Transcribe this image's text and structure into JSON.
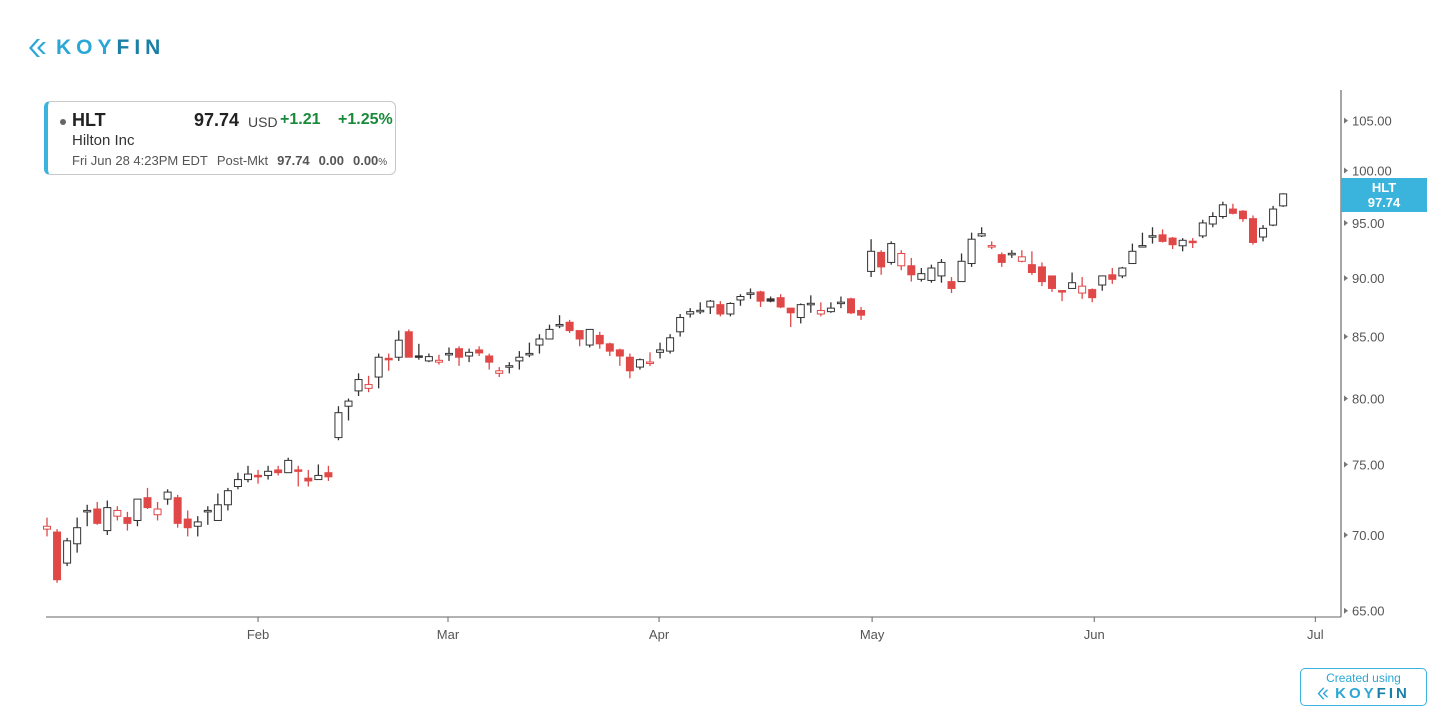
{
  "brand": {
    "part1": "KOY",
    "part2": "FIN",
    "created_label": "Created using"
  },
  "quote": {
    "ticker": "HLT",
    "price": "97.74",
    "currency": "USD",
    "change": "+1.21",
    "change_pct": "+1.25%",
    "name": "Hilton Inc",
    "timestamp": "Fri Jun 28 4:23PM EDT",
    "post_label": "Post-Mkt",
    "post_price": "97.74",
    "post_change": "0.00",
    "post_change_pct": "0.00",
    "post_pct_sign": "%"
  },
  "badge": {
    "ticker": "HLT",
    "price": "97.74"
  },
  "colors": {
    "up": "#333333",
    "down": "#e04848",
    "accent": "#3ab4dc",
    "positive": "#1a8a3a"
  },
  "chart_data": {
    "type": "candlestick",
    "title": "HLT",
    "yscale": "log",
    "ylim": [
      64.6,
      108.2
    ],
    "yticks": [
      "65.00",
      "70.00",
      "75.00",
      "80.00",
      "85.00",
      "90.00",
      "95.00",
      "100.00",
      "105.00"
    ],
    "xticks": [
      {
        "label": "Feb",
        "at": 21.0
      },
      {
        "label": "Mar",
        "at": 39.9
      },
      {
        "label": "Apr",
        "at": 60.9
      },
      {
        "label": "May",
        "at": 82.1
      },
      {
        "label": "Jun",
        "at": 104.2
      },
      {
        "label": "Jul",
        "at": 126.2
      }
    ],
    "prev_close": 70.8,
    "ohlc": [
      [
        70.4,
        71.2,
        69.9,
        70.6
      ],
      [
        70.2,
        70.4,
        66.8,
        67.0
      ],
      [
        68.1,
        69.8,
        67.9,
        69.6
      ],
      [
        69.4,
        71.2,
        68.8,
        70.5
      ],
      [
        71.6,
        72.1,
        70.6,
        71.7
      ],
      [
        71.8,
        72.3,
        70.7,
        70.8
      ],
      [
        70.3,
        72.4,
        70.0,
        71.9
      ],
      [
        71.3,
        72.0,
        71.0,
        71.7
      ],
      [
        71.2,
        71.6,
        70.3,
        70.8
      ],
      [
        71.0,
        72.5,
        70.6,
        72.5
      ],
      [
        72.6,
        73.3,
        71.8,
        71.9
      ],
      [
        71.4,
        72.3,
        71.0,
        71.8
      ],
      [
        72.5,
        73.2,
        72.1,
        73.0
      ],
      [
        72.6,
        72.8,
        70.5,
        70.8
      ],
      [
        71.1,
        71.7,
        69.9,
        70.5
      ],
      [
        70.6,
        71.3,
        69.9,
        70.9
      ],
      [
        71.6,
        72.0,
        70.7,
        71.7
      ],
      [
        71.0,
        72.9,
        71.0,
        72.1
      ],
      [
        72.1,
        73.3,
        71.7,
        73.1
      ],
      [
        73.4,
        74.4,
        73.2,
        73.9
      ],
      [
        73.9,
        74.9,
        73.7,
        74.3
      ],
      [
        74.2,
        74.6,
        73.6,
        74.1
      ],
      [
        74.2,
        74.9,
        73.9,
        74.5
      ],
      [
        74.6,
        74.9,
        74.2,
        74.4
      ],
      [
        74.4,
        75.5,
        74.4,
        75.3
      ],
      [
        74.6,
        74.9,
        73.4,
        74.5
      ],
      [
        74.0,
        74.6,
        73.4,
        73.8
      ],
      [
        73.9,
        75.0,
        73.9,
        74.2
      ],
      [
        74.4,
        74.9,
        73.8,
        74.1
      ],
      [
        77.0,
        79.4,
        76.8,
        78.9
      ],
      [
        79.4,
        80.0,
        78.3,
        79.8
      ],
      [
        80.6,
        82.0,
        80.2,
        81.5
      ],
      [
        80.8,
        81.8,
        80.5,
        81.1
      ],
      [
        81.7,
        83.6,
        80.8,
        83.3
      ],
      [
        83.2,
        83.6,
        82.2,
        83.1
      ],
      [
        83.3,
        85.5,
        83.0,
        84.7
      ],
      [
        85.4,
        85.6,
        83.3,
        83.3
      ],
      [
        83.4,
        84.4,
        83.1,
        83.3
      ],
      [
        83.0,
        83.6,
        82.9,
        83.35
      ],
      [
        82.9,
        83.5,
        82.7,
        83.05
      ],
      [
        83.5,
        84.1,
        83.0,
        83.6
      ],
      [
        84.0,
        84.2,
        82.6,
        83.3
      ],
      [
        83.4,
        84.0,
        82.9,
        83.7
      ],
      [
        83.9,
        84.2,
        83.4,
        83.65
      ],
      [
        83.4,
        83.6,
        82.3,
        82.9
      ],
      [
        82.0,
        82.5,
        81.7,
        82.2
      ],
      [
        82.5,
        82.9,
        82.0,
        82.6
      ],
      [
        83.0,
        83.8,
        82.3,
        83.3
      ],
      [
        83.5,
        84.5,
        83.3,
        83.6
      ],
      [
        84.3,
        85.2,
        83.6,
        84.8
      ],
      [
        84.8,
        86.0,
        84.8,
        85.6
      ],
      [
        85.9,
        86.8,
        85.7,
        86.0
      ],
      [
        86.2,
        86.4,
        85.3,
        85.5
      ],
      [
        85.5,
        85.5,
        84.2,
        84.8
      ],
      [
        84.3,
        85.6,
        84.1,
        85.6
      ],
      [
        85.1,
        85.4,
        84.0,
        84.4
      ],
      [
        84.4,
        84.5,
        83.4,
        83.8
      ],
      [
        83.9,
        84.0,
        82.6,
        83.4
      ],
      [
        83.3,
        83.6,
        81.6,
        82.2
      ],
      [
        82.5,
        83.2,
        82.3,
        83.1
      ],
      [
        82.8,
        83.7,
        82.6,
        82.9
      ],
      [
        83.7,
        84.5,
        83.2,
        83.9
      ],
      [
        83.8,
        85.2,
        83.6,
        84.9
      ],
      [
        85.4,
        86.9,
        85.0,
        86.6
      ],
      [
        86.9,
        87.4,
        86.6,
        87.1
      ],
      [
        87.1,
        87.9,
        86.9,
        87.2
      ],
      [
        87.5,
        88.1,
        86.9,
        88.0
      ],
      [
        87.7,
        88.0,
        86.7,
        86.9
      ],
      [
        86.9,
        87.9,
        86.7,
        87.8
      ],
      [
        88.1,
        88.6,
        87.6,
        88.4
      ],
      [
        88.6,
        89.1,
        88.2,
        88.7
      ],
      [
        88.8,
        88.9,
        87.5,
        88.0
      ],
      [
        88.2,
        88.4,
        87.9,
        88.0
      ],
      [
        88.3,
        88.6,
        87.4,
        87.5
      ],
      [
        87.4,
        87.4,
        85.8,
        87.0
      ],
      [
        86.6,
        87.8,
        86.1,
        87.7
      ],
      [
        87.7,
        88.5,
        87.0,
        87.8
      ],
      [
        86.9,
        87.9,
        86.7,
        87.2
      ],
      [
        87.1,
        87.9,
        87.0,
        87.4
      ],
      [
        87.8,
        88.4,
        87.4,
        87.9
      ],
      [
        88.2,
        88.3,
        86.9,
        87.0
      ],
      [
        87.2,
        87.5,
        86.4,
        86.8
      ],
      [
        90.6,
        93.5,
        90.1,
        92.4
      ],
      [
        92.3,
        92.5,
        90.3,
        91.0
      ],
      [
        91.4,
        93.3,
        91.2,
        93.1
      ],
      [
        91.1,
        92.5,
        90.7,
        92.2
      ],
      [
        91.1,
        91.8,
        89.7,
        90.3
      ],
      [
        89.9,
        90.9,
        89.7,
        90.4
      ],
      [
        89.8,
        91.2,
        89.6,
        90.9
      ],
      [
        90.2,
        91.7,
        89.6,
        91.4
      ],
      [
        89.7,
        90.1,
        88.7,
        89.1
      ],
      [
        89.7,
        92.2,
        89.7,
        91.5
      ],
      [
        91.3,
        94.1,
        91.0,
        93.5
      ],
      [
        93.8,
        94.6,
        93.7,
        94.0
      ],
      [
        92.8,
        93.3,
        92.6,
        92.9
      ],
      [
        92.1,
        92.3,
        91.0,
        91.4
      ],
      [
        92.1,
        92.5,
        91.8,
        92.2
      ],
      [
        91.5,
        92.5,
        91.4,
        91.9
      ],
      [
        91.2,
        92.4,
        90.3,
        90.5
      ],
      [
        91.0,
        91.4,
        89.3,
        89.7
      ],
      [
        90.2,
        90.2,
        88.8,
        89.1
      ],
      [
        88.9,
        88.9,
        88.0,
        88.8
      ],
      [
        89.1,
        90.5,
        89.1,
        89.6
      ],
      [
        88.7,
        90.1,
        88.2,
        89.3
      ],
      [
        89.0,
        89.1,
        87.9,
        88.3
      ],
      [
        89.4,
        90.2,
        88.9,
        90.2
      ],
      [
        90.3,
        90.9,
        89.5,
        89.9
      ],
      [
        90.2,
        91.0,
        90.0,
        90.9
      ],
      [
        91.3,
        93.1,
        91.3,
        92.4
      ],
      [
        92.8,
        94.1,
        92.8,
        92.9
      ],
      [
        93.7,
        94.6,
        93.1,
        93.8
      ],
      [
        93.9,
        94.4,
        93.2,
        93.3
      ],
      [
        93.6,
        93.7,
        92.6,
        93.0
      ],
      [
        92.9,
        93.6,
        92.4,
        93.4
      ],
      [
        93.3,
        93.6,
        92.7,
        93.2
      ],
      [
        93.8,
        95.3,
        93.6,
        95.0
      ],
      [
        94.9,
        96.0,
        94.6,
        95.6
      ],
      [
        95.6,
        97.0,
        95.4,
        96.7
      ],
      [
        96.3,
        96.8,
        95.8,
        95.9
      ],
      [
        96.1,
        96.2,
        95.1,
        95.4
      ],
      [
        95.4,
        95.7,
        93.0,
        93.2
      ],
      [
        93.7,
        94.8,
        93.3,
        94.5
      ],
      [
        94.8,
        96.6,
        94.7,
        96.3
      ],
      [
        96.6,
        97.8,
        96.5,
        97.74
      ]
    ]
  }
}
